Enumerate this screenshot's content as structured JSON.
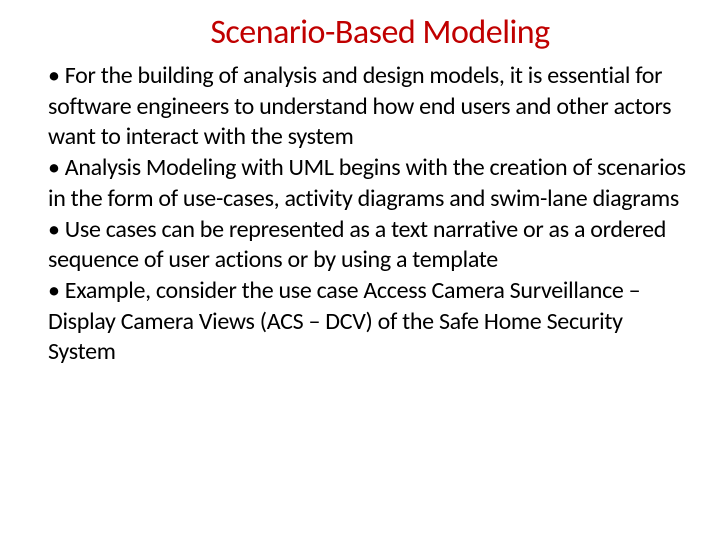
{
  "slide": {
    "title": "Scenario-Based Modeling",
    "title_color": "#c00000",
    "title_fontsize": 34,
    "body_fontsize": 24,
    "body_color": "#000000",
    "background_color": "#ffffff",
    "bullets": [
      "For the building of analysis and design models, it is essential for software engineers to understand how end users and other actors want to interact with the system",
      "Analysis Modeling with UML begins with the creation of scenarios in the form of use-cases, activity diagrams and swim-lane diagrams",
      "Use cases can be represented as  a text narrative or as a ordered sequence of user actions or by using a template",
      "Example, consider the use case Access Camera Surveillance – Display Camera Views (ACS – DCV) of the Safe Home Security System"
    ]
  }
}
